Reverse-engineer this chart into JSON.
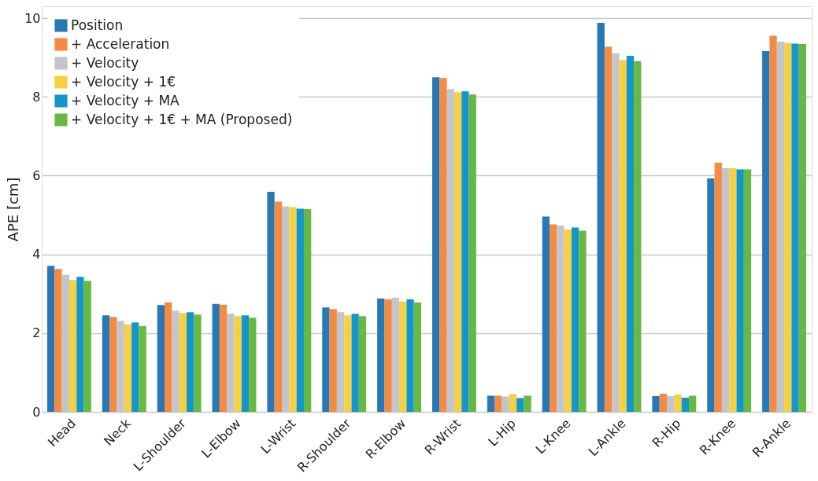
{
  "chart_data": {
    "type": "bar",
    "ylabel": "APE [cm]",
    "categories": [
      "Head",
      "Neck",
      "L-Shoulder",
      "L-Elbow",
      "L-Wrist",
      "R-Shoulder",
      "R-Elbow",
      "R-Wrist",
      "L-Hip",
      "L-Knee",
      "L-Ankle",
      "R-Hip",
      "R-Knee",
      "R-Ankle"
    ],
    "series": [
      {
        "name": "Position",
        "color": "#2878b5",
        "values": [
          3.71,
          2.45,
          2.71,
          2.74,
          5.59,
          2.65,
          2.88,
          8.5,
          0.41,
          4.96,
          9.88,
          0.4,
          5.93,
          9.16
        ]
      },
      {
        "name": "+ Acceleration",
        "color": "#f58a43",
        "values": [
          3.63,
          2.41,
          2.78,
          2.72,
          5.34,
          2.61,
          2.86,
          8.48,
          0.41,
          4.76,
          9.27,
          0.46,
          6.33,
          9.55
        ]
      },
      {
        "name": "+ Velocity",
        "color": "#c2c5cc",
        "values": [
          3.48,
          2.31,
          2.57,
          2.49,
          5.22,
          2.53,
          2.9,
          8.2,
          0.39,
          4.73,
          9.1,
          0.4,
          6.19,
          9.4
        ]
      },
      {
        "name": "+ Velocity + 1€",
        "color": "#f5d044",
        "values": [
          3.35,
          2.22,
          2.51,
          2.43,
          5.2,
          2.45,
          2.8,
          8.12,
          0.45,
          4.63,
          8.94,
          0.44,
          6.19,
          9.37
        ]
      },
      {
        "name": "+ Velocity + MA",
        "color": "#1596c8",
        "values": [
          3.43,
          2.27,
          2.53,
          2.45,
          5.16,
          2.49,
          2.86,
          8.14,
          0.35,
          4.68,
          9.04,
          0.36,
          6.16,
          9.35
        ]
      },
      {
        "name": "+ Velocity + 1€ + MA (Proposed)",
        "color": "#68b944",
        "values": [
          3.33,
          2.18,
          2.47,
          2.39,
          5.15,
          2.43,
          2.78,
          8.06,
          0.41,
          4.6,
          8.91,
          0.41,
          6.16,
          9.34
        ]
      }
    ],
    "ylim": [
      0,
      10.3
    ],
    "yticks": [
      0,
      2,
      4,
      6,
      8,
      10
    ],
    "grid": "y",
    "legend": "top left"
  }
}
